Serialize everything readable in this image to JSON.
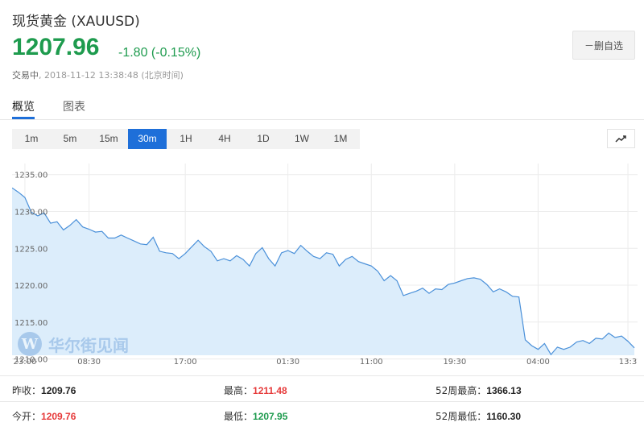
{
  "quote": {
    "title": "现货黄金 (XAUUSD)",
    "price": "1207.96",
    "change": "-1.80 (-0.15%)",
    "status_label": "交易中",
    "status_time": ", 2018-11-12 13:38:48 (北京时间)",
    "color_down": "#1e9b4e",
    "color_up": "#e63a3a"
  },
  "actions": {
    "remove_watchlist": "－删自选"
  },
  "tabs": [
    {
      "label": "概览",
      "active": true
    },
    {
      "label": "图表",
      "active": false
    }
  ],
  "intervals": [
    {
      "label": "1m",
      "active": false
    },
    {
      "label": "5m",
      "active": false
    },
    {
      "label": "15m",
      "active": false
    },
    {
      "label": "30m",
      "active": true
    },
    {
      "label": "1H",
      "active": false
    },
    {
      "label": "4H",
      "active": false
    },
    {
      "label": "1D",
      "active": false
    },
    {
      "label": "1W",
      "active": false
    },
    {
      "label": "1M",
      "active": false
    }
  ],
  "watermark": {
    "letter": "W",
    "text": "华尔街见闻"
  },
  "stats": {
    "prev_close_label": "昨收：",
    "prev_close": "1209.76",
    "open_label": "今开：",
    "open": "1209.76",
    "high_label": "最高：",
    "high": "1211.48",
    "low_label": "最低：",
    "low": "1207.95",
    "high52_label": "52周最高：",
    "high52": "1366.13",
    "low52_label": "52周最低：",
    "low52": "1160.30"
  },
  "chart_data": {
    "type": "area",
    "title": "",
    "xlabel": "",
    "ylabel": "",
    "ylim": [
      1210.5,
      1236.5
    ],
    "y_ticks": [
      "1235.00",
      "1230.00",
      "1225.00",
      "1220.00",
      "1215.00",
      "1210.00"
    ],
    "x_ticks": [
      {
        "label": "23:00",
        "i": 2
      },
      {
        "label": "08:30",
        "i": 12
      },
      {
        "label": "17:00",
        "i": 27
      },
      {
        "label": "01:30",
        "i": 43
      },
      {
        "label": "11:00",
        "i": 56
      },
      {
        "label": "19:30",
        "i": 69
      },
      {
        "label": "04:00",
        "i": 82
      },
      {
        "label": "13:3",
        "i": 96
      }
    ],
    "grid": true,
    "colors": {
      "line": "#4a90d9",
      "fill": "#dcedfb",
      "grid": "#ececec"
    },
    "values": [
      1233.2,
      1232.6,
      1231.9,
      1229.9,
      1229.4,
      1229.8,
      1228.4,
      1228.6,
      1227.5,
      1228.1,
      1228.9,
      1227.9,
      1227.6,
      1227.2,
      1227.3,
      1226.4,
      1226.4,
      1226.8,
      1226.4,
      1226.0,
      1225.6,
      1225.5,
      1226.5,
      1224.6,
      1224.4,
      1224.3,
      1223.6,
      1224.3,
      1225.2,
      1226.1,
      1225.2,
      1224.6,
      1223.3,
      1223.6,
      1223.3,
      1224.0,
      1223.5,
      1222.6,
      1224.3,
      1225.1,
      1223.6,
      1222.6,
      1224.4,
      1224.7,
      1224.3,
      1225.4,
      1224.6,
      1223.9,
      1223.6,
      1224.4,
      1224.2,
      1222.6,
      1223.5,
      1223.9,
      1223.2,
      1222.9,
      1222.6,
      1221.9,
      1220.6,
      1221.3,
      1220.6,
      1218.6,
      1218.9,
      1219.2,
      1219.6,
      1218.9,
      1219.5,
      1219.4,
      1220.1,
      1220.3,
      1220.6,
      1220.9,
      1221.0,
      1220.8,
      1220.1,
      1219.1,
      1219.5,
      1219.1,
      1218.5,
      1218.4,
      1212.6,
      1211.8,
      1211.3,
      1212.1,
      1210.6,
      1211.6,
      1211.3,
      1211.6,
      1212.3,
      1212.5,
      1212.1,
      1212.8,
      1212.7,
      1213.5,
      1212.9,
      1213.1,
      1212.4,
      1211.5
    ]
  }
}
